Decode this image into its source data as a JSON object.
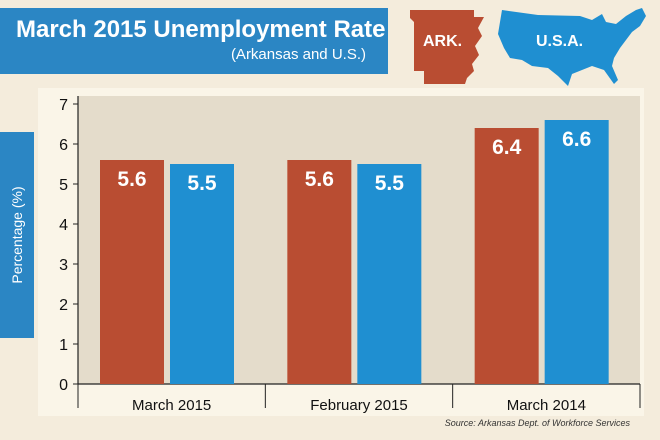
{
  "header": {
    "title": "March 2015 Unemployment Rate",
    "subtitle": "(Arkansas and U.S.)"
  },
  "legend": {
    "arkansas_label": "ARK.",
    "us_label": "U.S.A.",
    "arkansas_icon": "arkansas-state-map-icon",
    "us_icon": "usa-map-icon"
  },
  "colors": {
    "arkansas": "#b94d32",
    "us": "#1f8fd1",
    "banner": "#2b86c4",
    "plot_bg": "#e4dccb"
  },
  "chart_data": {
    "type": "bar",
    "categories": [
      "March 2015",
      "February 2015",
      "March 2014"
    ],
    "series": [
      {
        "name": "ARK.",
        "values": [
          5.6,
          5.6,
          6.4
        ]
      },
      {
        "name": "U.S.A.",
        "values": [
          5.5,
          5.5,
          6.6
        ]
      }
    ],
    "data_labels": [
      [
        "5.6",
        "5.6",
        "6.4"
      ],
      [
        "5.5",
        "5.5",
        "6.6"
      ]
    ],
    "y_ticks": [
      "0",
      "1",
      "2",
      "3",
      "4",
      "5",
      "6",
      "7"
    ],
    "ylabel": "Percentage (%)",
    "xlabel": "",
    "ylim": [
      0,
      7
    ],
    "grid": false,
    "legend_position": "top-right"
  },
  "source": "Source: Arkansas Dept. of Workforce Services"
}
